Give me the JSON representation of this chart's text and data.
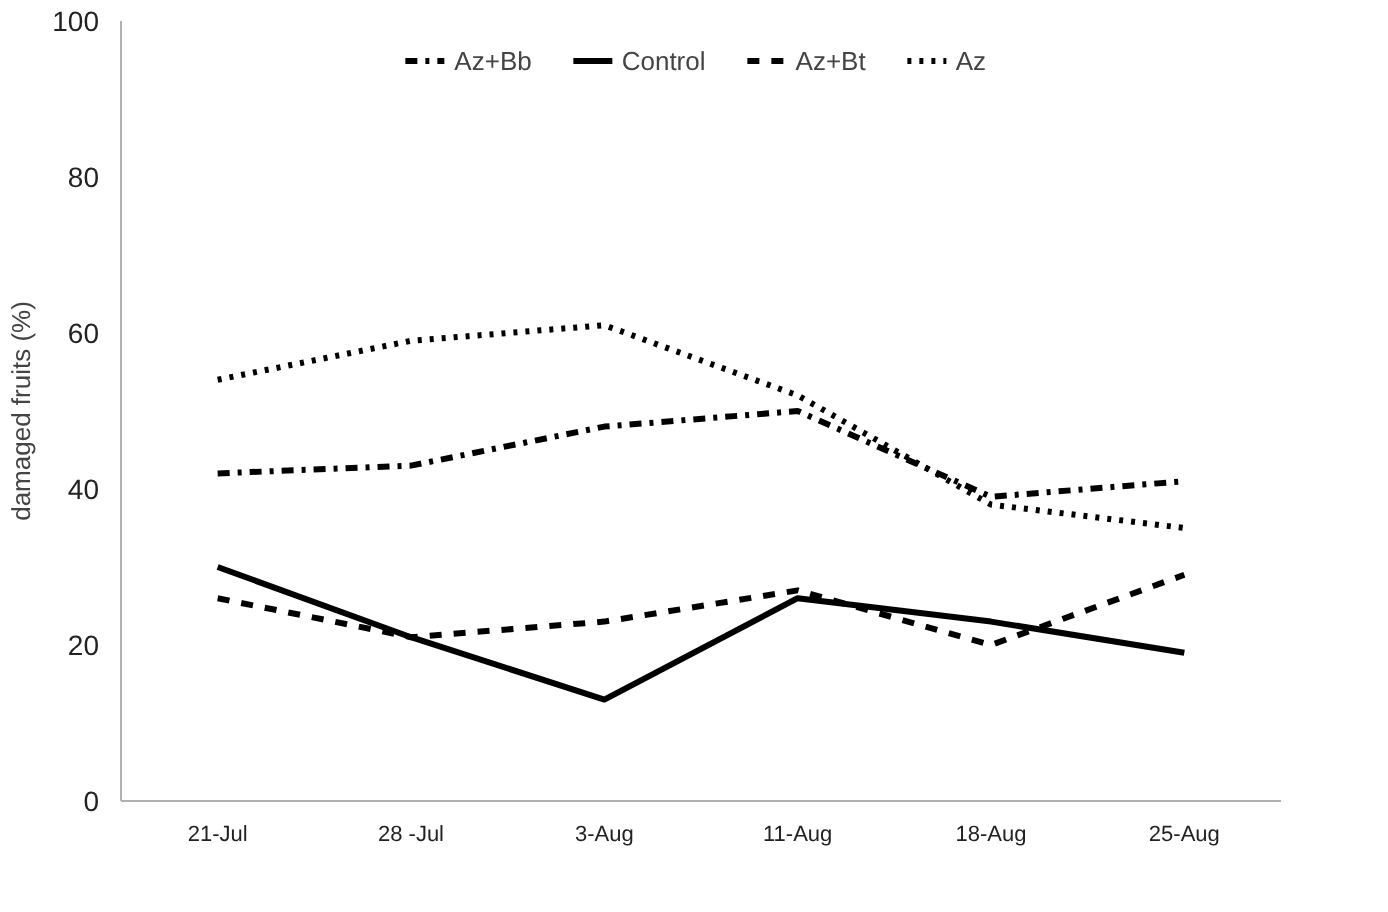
{
  "chart_data": {
    "type": "line",
    "ylabel": "damaged fruits (%)",
    "categories": [
      "21-Jul",
      "28 -Jul",
      "3-Aug",
      "11-Aug",
      "18-Aug",
      "25-Aug"
    ],
    "ylim": [
      0,
      100
    ],
    "yticks": [
      0,
      20,
      40,
      60,
      80,
      100
    ],
    "grid": false,
    "legend": "top",
    "marker": "none",
    "series": [
      {
        "name": "Az+Bb",
        "color": "#000000",
        "line_style": "dashdot",
        "values": [
          42,
          43,
          48,
          50,
          39,
          41
        ]
      },
      {
        "name": "Control",
        "color": "#000000",
        "line_style": "solid",
        "values": [
          30,
          21,
          13,
          26,
          23,
          19
        ]
      },
      {
        "name": "Az+Bt",
        "color": "#000000",
        "line_style": "dashed",
        "values": [
          26,
          21,
          23,
          27,
          20,
          29
        ]
      },
      {
        "name": "Az",
        "color": "#000000",
        "line_style": "dotted",
        "values": [
          54,
          59,
          61,
          52,
          38,
          35
        ]
      }
    ]
  }
}
